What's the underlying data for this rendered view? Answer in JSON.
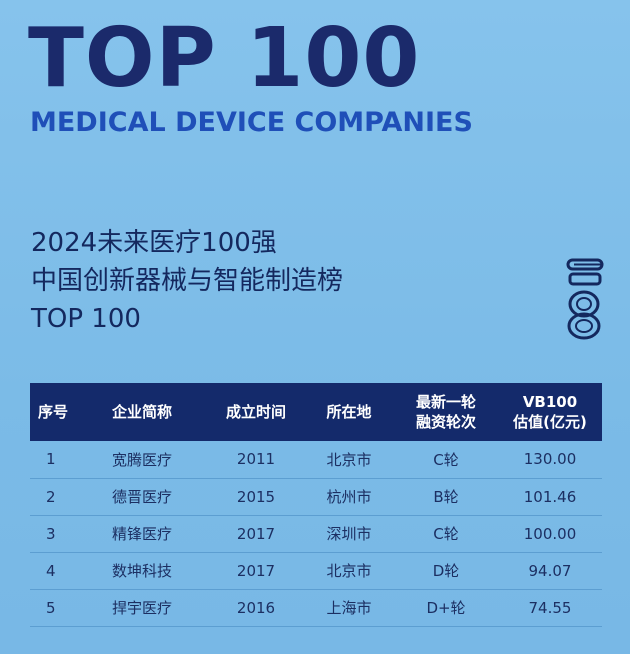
{
  "header": {
    "big_title": "TOP 100",
    "subtitle": "MEDICAL DEVICE COMPANIES"
  },
  "ranking_title": {
    "line1": "2024未来医疗100强",
    "line2": "中国创新器械与智能制造榜",
    "line3": "TOP 100"
  },
  "decoration": {
    "icon": "vertical-number-icon",
    "color": "#14285e"
  },
  "table": {
    "headers": {
      "rank": "序号",
      "company": "企业简称",
      "founded": "成立时间",
      "location": "所在地",
      "round_line1": "最新一轮",
      "round_line2": "融资轮次",
      "valuation_line1": "VB100",
      "valuation_line2": "估值(亿元)"
    },
    "rows": [
      {
        "rank": "1",
        "company": "宽腾医疗",
        "founded": "2011",
        "location": "北京市",
        "round": "C轮",
        "valuation": "130.00"
      },
      {
        "rank": "2",
        "company": "德晋医疗",
        "founded": "2015",
        "location": "杭州市",
        "round": "B轮",
        "valuation": "101.46"
      },
      {
        "rank": "3",
        "company": "精锋医疗",
        "founded": "2017",
        "location": "深圳市",
        "round": "C轮",
        "valuation": "100.00"
      },
      {
        "rank": "4",
        "company": "数坤科技",
        "founded": "2017",
        "location": "北京市",
        "round": "D轮",
        "valuation": "94.07"
      },
      {
        "rank": "5",
        "company": "捍宇医疗",
        "founded": "2016",
        "location": "上海市",
        "round": "D+轮",
        "valuation": "74.55"
      }
    ]
  },
  "colors": {
    "background": "#7dbce8",
    "title_navy": "#1b2a6b",
    "subtitle_blue": "#1f4fb8",
    "table_header": "#142a6b"
  }
}
